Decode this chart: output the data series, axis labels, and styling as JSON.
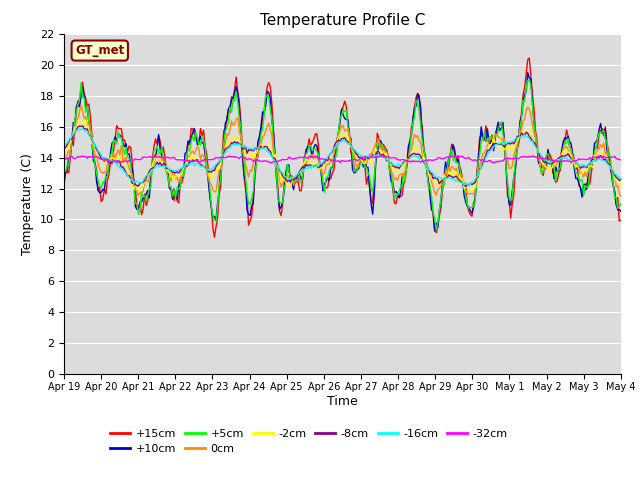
{
  "title": "Temperature Profile C",
  "xlabel": "Time",
  "ylabel": "Temperature (C)",
  "ylim": [
    0,
    22
  ],
  "yticks": [
    0,
    2,
    4,
    6,
    8,
    10,
    12,
    14,
    16,
    18,
    20,
    22
  ],
  "x_labels": [
    "Apr 19",
    "Apr 20",
    "Apr 21",
    "Apr 22",
    "Apr 23",
    "Apr 24",
    "Apr 25",
    "Apr 26",
    "Apr 27",
    "Apr 28",
    "Apr 29",
    "Apr 30",
    "May 1",
    "May 2",
    "May 3",
    "May 4"
  ],
  "annotation_text": "GT_met",
  "annotation_color": "#8B0000",
  "annotation_bg": "#FFFFCC",
  "series_labels": [
    "+15cm",
    "+10cm",
    "+5cm",
    "0cm",
    "-2cm",
    "-8cm",
    "-16cm",
    "-32cm"
  ],
  "series_colors": [
    "#FF0000",
    "#0000CC",
    "#00FF00",
    "#FF8C00",
    "#FFFF00",
    "#880088",
    "#00FFFF",
    "#FF00FF"
  ],
  "line_width": 1.0,
  "bg_color": "#DCDCDC",
  "title_fontsize": 11,
  "legend_fontsize": 8,
  "tick_fontsize": 8
}
